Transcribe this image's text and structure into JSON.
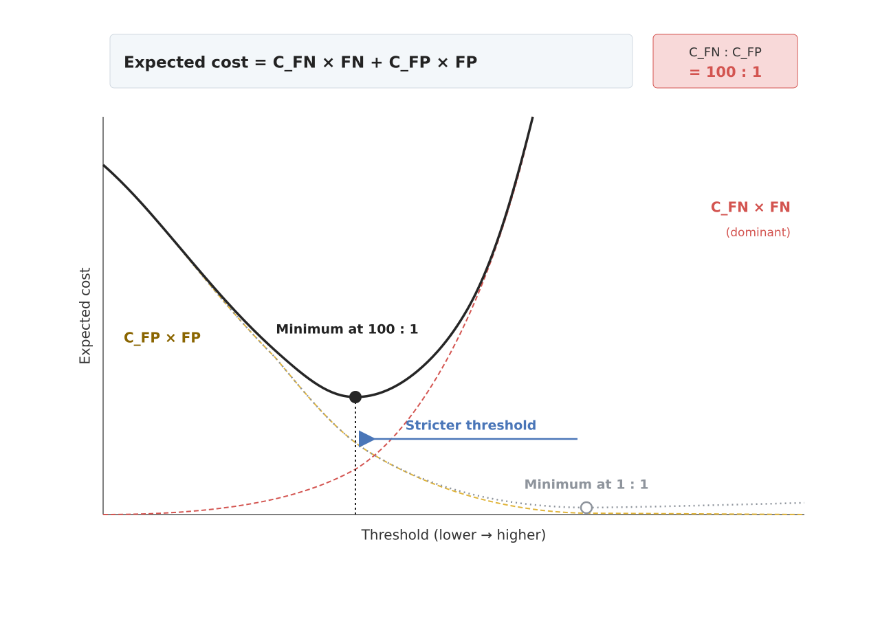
{
  "header": {
    "formula": "Expected cost = C_FN × FN + C_FP × FP",
    "ratio_label": "C_FN : C_FP",
    "ratio_value": "= 100 : 1"
  },
  "axes": {
    "y_label": "Expected cost",
    "x_label": "Threshold (lower → higher)"
  },
  "annotations": {
    "fn_curve": "C_FN × FN",
    "fn_note": "(dominant)",
    "fp_curve": "C_FP × FP",
    "minimum_current": "Minimum at 100 : 1",
    "arrow": "Stricter threshold",
    "minimum_balanced": "Minimum at 1 : 1"
  }
}
